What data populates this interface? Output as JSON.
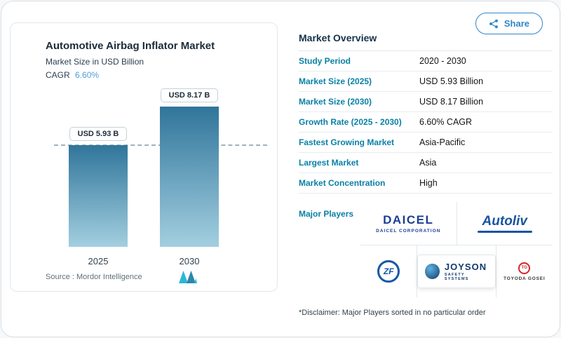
{
  "share": {
    "label": "Share"
  },
  "chart_card": {
    "title": "Automotive Airbag Inflator Market",
    "subtitle": "Market Size in USD Billion",
    "cagr_label": "CAGR",
    "cagr_value": "6.60%",
    "source_label": "Source :  Mordor Intelligence"
  },
  "chart_data": {
    "type": "bar",
    "title": "Automotive Airbag Inflator Market",
    "subtitle": "Market Size in USD Billion",
    "unit": "USD Billion",
    "categories": [
      "2025",
      "2030"
    ],
    "values": [
      5.93,
      8.17
    ],
    "bar_labels": [
      "USD 5.93 B",
      "USD 8.17 B"
    ],
    "cagr": "6.60%",
    "ylim": [
      0,
      9
    ],
    "reference_line_at": 5.93,
    "grid": false,
    "bar_color_top": "#30759a",
    "bar_color_bottom": "#a3cfe0"
  },
  "overview": {
    "heading": "Market Overview",
    "rows": [
      {
        "label": "Study Period",
        "value": "2020 - 2030"
      },
      {
        "label": "Market Size (2025)",
        "value": "USD 5.93 Billion"
      },
      {
        "label": "Market Size (2030)",
        "value": "USD 8.17 Billion"
      },
      {
        "label": "Growth Rate (2025 - 2030)",
        "value": "6.60% CAGR"
      },
      {
        "label": "Fastest Growing Market",
        "value": "Asia-Pacific"
      },
      {
        "label": "Largest Market",
        "value": "Asia"
      },
      {
        "label": "Market Concentration",
        "value": "High"
      }
    ],
    "major_players_label": "Major Players",
    "players": [
      {
        "name": "DAICEL",
        "sub": "DAICEL CORPORATION"
      },
      {
        "name": "Autoliv",
        "sub": ""
      },
      {
        "name": "ZF",
        "sub": ""
      },
      {
        "name": "JOYSON",
        "sub": "SAFETY SYSTEMS"
      },
      {
        "name": "TOYODA GOSEI",
        "monogram": "TG"
      }
    ],
    "disclaimer": "*Disclaimer: Major Players sorted in no particular order"
  },
  "colors": {
    "brand_teal": "#0a80a6",
    "share_blue": "#2f86c8",
    "cagr_blue": "#4d9fd6"
  }
}
